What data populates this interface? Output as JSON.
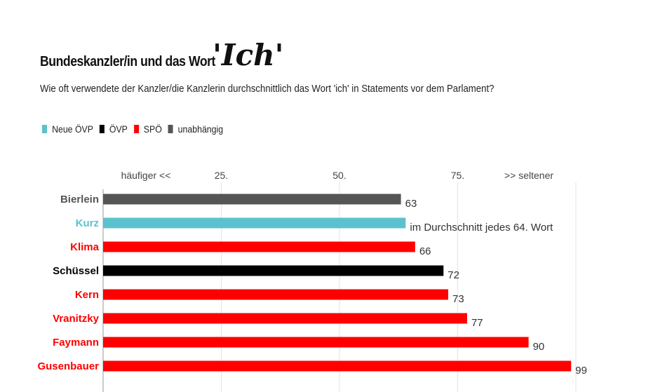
{
  "header": {
    "title": "Bundeskanzler/in und das Wort",
    "title_word": "'Ich'",
    "subtitle": "Wie oft verwendete der Kanzler/die Kanzlerin durchschnittlich das Wort 'ich' in Statements vor dem Parlament?"
  },
  "legend": {
    "items": [
      {
        "label": "Neue ÖVP",
        "color": "#5bc2cd"
      },
      {
        "label": "ÖVP",
        "color": "#000000"
      },
      {
        "label": "SPÖ",
        "color": "#ff0000"
      },
      {
        "label": "unabhängig",
        "color": "#555555"
      }
    ]
  },
  "chart_data": {
    "type": "bar",
    "orientation": "horizontal",
    "categories": [
      "Bierlein",
      "Kurz",
      "Klima",
      "Schüssel",
      "Kern",
      "Vranitzky",
      "Faymann",
      "Gusenbauer"
    ],
    "values": [
      63,
      64,
      66,
      72,
      73,
      77,
      90,
      99
    ],
    "value_labels": [
      "63",
      "im Durchschnitt jedes 64. Wort",
      "66",
      "72",
      "73",
      "77",
      "90",
      "99"
    ],
    "colors": [
      "#555555",
      "#5bc2cd",
      "#ff0000",
      "#000000",
      "#ff0000",
      "#ff0000",
      "#ff0000",
      "#ff0000"
    ],
    "label_colors": [
      "#555555",
      "#5bc2cd",
      "#ff0000",
      "#000000",
      "#ff0000",
      "#ff0000",
      "#ff0000",
      "#ff0000"
    ],
    "xlim": [
      0,
      100
    ],
    "xticks": [
      25,
      50,
      75
    ],
    "xtick_labels": [
      "25.",
      "50.",
      "75."
    ],
    "axis_annotations": {
      "left": "häufiger <<",
      "right": ">> seltener"
    },
    "grid": true
  }
}
